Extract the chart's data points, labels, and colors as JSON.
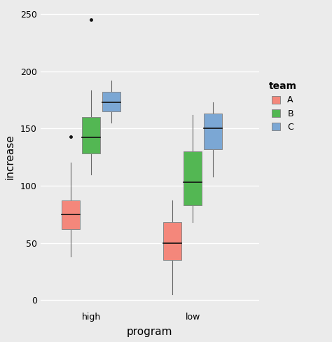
{
  "title": "",
  "xlabel": "program",
  "ylabel": "increase",
  "background_color": "#EBEBEB",
  "grid_color": "#FFFFFF",
  "ylim": [
    -8,
    258
  ],
  "yticks": [
    0,
    50,
    100,
    150,
    200,
    250
  ],
  "groups": [
    "high",
    "low"
  ],
  "teams": [
    "A",
    "B",
    "C"
  ],
  "team_colors": {
    "A": "#F4877B",
    "B": "#53B753",
    "C": "#7BA7D4"
  },
  "boxes": {
    "high": {
      "A": {
        "whisker_low": 38,
        "q1": 62,
        "median": 75,
        "q3": 87,
        "whisker_high": 120,
        "outliers": [
          143
        ]
      },
      "B": {
        "whisker_low": 110,
        "q1": 128,
        "median": 142,
        "q3": 160,
        "whisker_high": 183,
        "outliers": [
          245
        ]
      },
      "C": {
        "whisker_low": 155,
        "q1": 165,
        "median": 173,
        "q3": 182,
        "whisker_high": 192,
        "outliers": []
      }
    },
    "low": {
      "A": {
        "whisker_low": 5,
        "q1": 35,
        "median": 50,
        "q3": 68,
        "whisker_high": 87,
        "outliers": []
      },
      "B": {
        "whisker_low": 68,
        "q1": 83,
        "median": 103,
        "q3": 130,
        "whisker_high": 162,
        "outliers": []
      },
      "C": {
        "whisker_low": 108,
        "q1": 132,
        "median": 150,
        "q3": 163,
        "whisker_high": 173,
        "outliers": []
      }
    }
  },
  "box_width": 0.18,
  "group_positions": {
    "high": 1.0,
    "low": 2.0
  },
  "offsets": {
    "A": -0.2,
    "B": 0.0,
    "C": 0.2
  },
  "legend_title": "team",
  "tick_fontsize": 9,
  "label_fontsize": 11
}
